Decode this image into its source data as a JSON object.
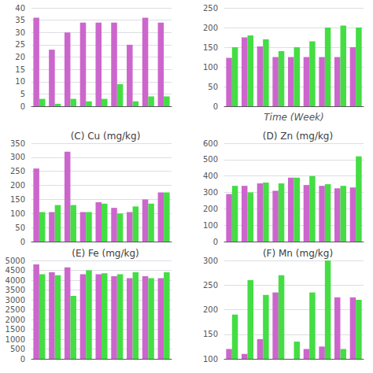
{
  "chart_data": [
    {
      "type": "bar",
      "categories": [
        null,
        null,
        null,
        null,
        null,
        null,
        null,
        null,
        null
      ],
      "series": [
        {
          "color": "#cc66cc",
          "values": [
            36,
            23,
            30,
            34,
            34,
            34,
            25,
            36,
            34
          ]
        },
        {
          "color": "#44dd44",
          "values": [
            3,
            1,
            3,
            2,
            3,
            9,
            2,
            4,
            4
          ]
        }
      ],
      "ylim": [
        0,
        40
      ],
      "yticks": [
        0,
        5,
        10,
        15,
        20,
        25,
        30,
        35,
        40
      ],
      "grid": true,
      "tick_labels": "y"
    },
    {
      "type": "bar",
      "xlabel": "Time (Week)",
      "categories": [
        null,
        null,
        null,
        null,
        null,
        null,
        null,
        null,
        null
      ],
      "series": [
        {
          "color": "#cc66cc",
          "values": [
            123,
            175,
            152,
            125,
            125,
            125,
            125,
            125,
            150
          ]
        },
        {
          "color": "#44dd44",
          "values": [
            150,
            180,
            170,
            140,
            150,
            165,
            200,
            205,
            200
          ]
        }
      ],
      "ylim": [
        0,
        250
      ],
      "yticks": [
        0,
        50,
        100,
        150,
        200,
        250
      ],
      "grid": true,
      "tick_labels": "y"
    },
    {
      "type": "bar",
      "title": "(C) Cu (mg/kg)",
      "categories": [
        null,
        null,
        null,
        null,
        null,
        null,
        null,
        null,
        null
      ],
      "series": [
        {
          "color": "#cc66cc",
          "values": [
            260,
            105,
            320,
            105,
            140,
            120,
            105,
            150,
            175
          ]
        },
        {
          "color": "#44dd44",
          "values": [
            105,
            130,
            130,
            105,
            135,
            100,
            125,
            135,
            175
          ]
        }
      ],
      "ylim": [
        0,
        350
      ],
      "yticks": [
        0,
        50,
        100,
        150,
        200,
        250,
        300,
        350
      ],
      "grid": true,
      "tick_labels": "y"
    },
    {
      "type": "bar",
      "title": "(D) Zn (mg/kg)",
      "categories": [
        null,
        null,
        null,
        null,
        null,
        null,
        null,
        null,
        null
      ],
      "series": [
        {
          "color": "#cc66cc",
          "values": [
            290,
            340,
            355,
            310,
            390,
            345,
            340,
            325,
            330
          ]
        },
        {
          "color": "#44dd44",
          "values": [
            340,
            300,
            360,
            355,
            390,
            400,
            350,
            340,
            520
          ]
        }
      ],
      "ylim": [
        0,
        600
      ],
      "yticks": [
        0,
        100,
        200,
        300,
        400,
        500,
        600
      ],
      "grid": true,
      "tick_labels": "y"
    },
    {
      "type": "bar",
      "title": "(E) Fe (mg/kg)",
      "categories": [
        null,
        null,
        null,
        null,
        null,
        null,
        null,
        null,
        null
      ],
      "series": [
        {
          "color": "#cc66cc",
          "values": [
            4800,
            4400,
            4650,
            4300,
            4300,
            4200,
            4100,
            4200,
            4100
          ]
        },
        {
          "color": "#44dd44",
          "values": [
            4300,
            4250,
            3200,
            4500,
            4350,
            4300,
            4400,
            4100,
            4400
          ]
        }
      ],
      "ylim": [
        0,
        5000
      ],
      "yticks": [
        0,
        500,
        1000,
        1500,
        2000,
        2500,
        3000,
        3500,
        4000,
        4500,
        5000
      ],
      "grid": true,
      "tick_labels": "y"
    },
    {
      "type": "bar",
      "title": "(F) Mn (mg/kg)",
      "categories": [
        null,
        null,
        null,
        null,
        null,
        null,
        null,
        null,
        null
      ],
      "series": [
        {
          "color": "#cc66cc",
          "values": [
            120,
            110,
            140,
            235,
            100,
            120,
            125,
            225,
            225
          ]
        },
        {
          "color": "#44dd44",
          "values": [
            190,
            260,
            230,
            270,
            135,
            235,
            300,
            120,
            220
          ]
        }
      ],
      "ylim": [
        100,
        300
      ],
      "yticks": [
        100,
        150,
        200,
        250,
        300
      ],
      "grid": true,
      "tick_labels": "y"
    }
  ]
}
